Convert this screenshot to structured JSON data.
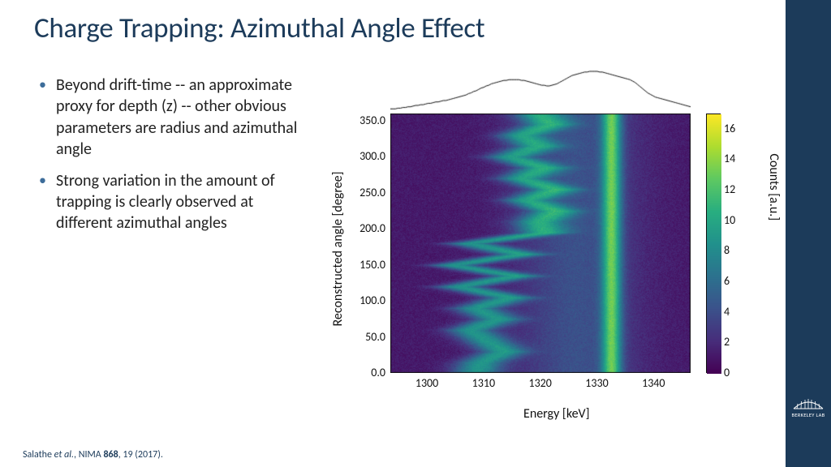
{
  "title": "Charge Trapping: Azimuthal Angle Effect",
  "bullets": [
    "Beyond drift-time -- an approximate proxy for depth (z) -- other obvious parameters are radius and azimuthal angle",
    "Strong variation in the amount of trapping is clearly observed at different azimuthal angles"
  ],
  "citation_html": "Salathe <i>et al.</i>, NIMA <b>868</b>, 19 (2017).",
  "sidebar": {
    "bg": "#1c3b5a",
    "logo_text": "BERKELEY LAB"
  },
  "figure": {
    "type": "heatmap",
    "xlabel": "Energy [keV]",
    "ylabel": "Reconstructed angle [degree]",
    "cbar_label": "Counts [a.u.]",
    "xlim": [
      1293,
      1346
    ],
    "ylim": [
      0,
      360
    ],
    "clim": [
      0,
      17
    ],
    "xticks": [
      1300,
      1310,
      1320,
      1330,
      1340
    ],
    "yticks": [
      0.0,
      50.0,
      100.0,
      150.0,
      200.0,
      250.0,
      300.0,
      350.0
    ],
    "cticks": [
      0,
      2,
      4,
      6,
      8,
      10,
      12,
      14,
      16
    ],
    "tick_fontsize": 14,
    "label_fontsize": 16,
    "background_color": "#ffffff",
    "viridis_stops": [
      [
        0.0,
        "#440154"
      ],
      [
        0.125,
        "#472d7b"
      ],
      [
        0.25,
        "#3b528b"
      ],
      [
        0.375,
        "#2c728e"
      ],
      [
        0.5,
        "#21918c"
      ],
      [
        0.625,
        "#28ae80"
      ],
      [
        0.75,
        "#5ec962"
      ],
      [
        0.875,
        "#addc30"
      ],
      [
        1.0,
        "#fde725"
      ]
    ],
    "marginal_profile": [
      2,
      2,
      2,
      3,
      3,
      4,
      4,
      5,
      5,
      6,
      7,
      7,
      8,
      8,
      9,
      10,
      10,
      11,
      12,
      12,
      13,
      14,
      14,
      15,
      16,
      17,
      18,
      19,
      20,
      21,
      22,
      24,
      25,
      27,
      28,
      30,
      32,
      33,
      35,
      36,
      38,
      39,
      40,
      41,
      42,
      43,
      43,
      44,
      44,
      44,
      44,
      44,
      43,
      43,
      42,
      41,
      40,
      39,
      38,
      37,
      36,
      36,
      35,
      35,
      36,
      37,
      38,
      40,
      42,
      44,
      46,
      48,
      50,
      51,
      52,
      53,
      54,
      55,
      55,
      56,
      56,
      56,
      56,
      55,
      55,
      54,
      53,
      52,
      51,
      50,
      49,
      48,
      47,
      46,
      45,
      44,
      42,
      40,
      37,
      34,
      31,
      28,
      25,
      23,
      21,
      19,
      18,
      17,
      16,
      15,
      14,
      13,
      12,
      11,
      10,
      9,
      8,
      7,
      6,
      5
    ],
    "peak_energy_by_angle": [
      [
        0,
        1308
      ],
      [
        15,
        1309
      ],
      [
        30,
        1313
      ],
      [
        45,
        1310
      ],
      [
        60,
        1307
      ],
      [
        75,
        1312
      ],
      [
        90,
        1308
      ],
      [
        105,
        1314
      ],
      [
        120,
        1305
      ],
      [
        135,
        1315
      ],
      [
        150,
        1304
      ],
      [
        165,
        1316
      ],
      [
        180,
        1307
      ],
      [
        195,
        1320
      ],
      [
        210,
        1319
      ],
      [
        225,
        1322
      ],
      [
        240,
        1317
      ],
      [
        255,
        1322
      ],
      [
        270,
        1316
      ],
      [
        285,
        1320
      ],
      [
        300,
        1314
      ],
      [
        315,
        1319
      ],
      [
        330,
        1316
      ],
      [
        345,
        1321
      ],
      [
        360,
        1319
      ]
    ],
    "line_energy": 1332,
    "band_base_counts": 1.2,
    "band_peak_counts": 7.5,
    "band_width_kev": 6.0,
    "line_peak_counts": 10.0,
    "noise_amp": 0.6
  }
}
